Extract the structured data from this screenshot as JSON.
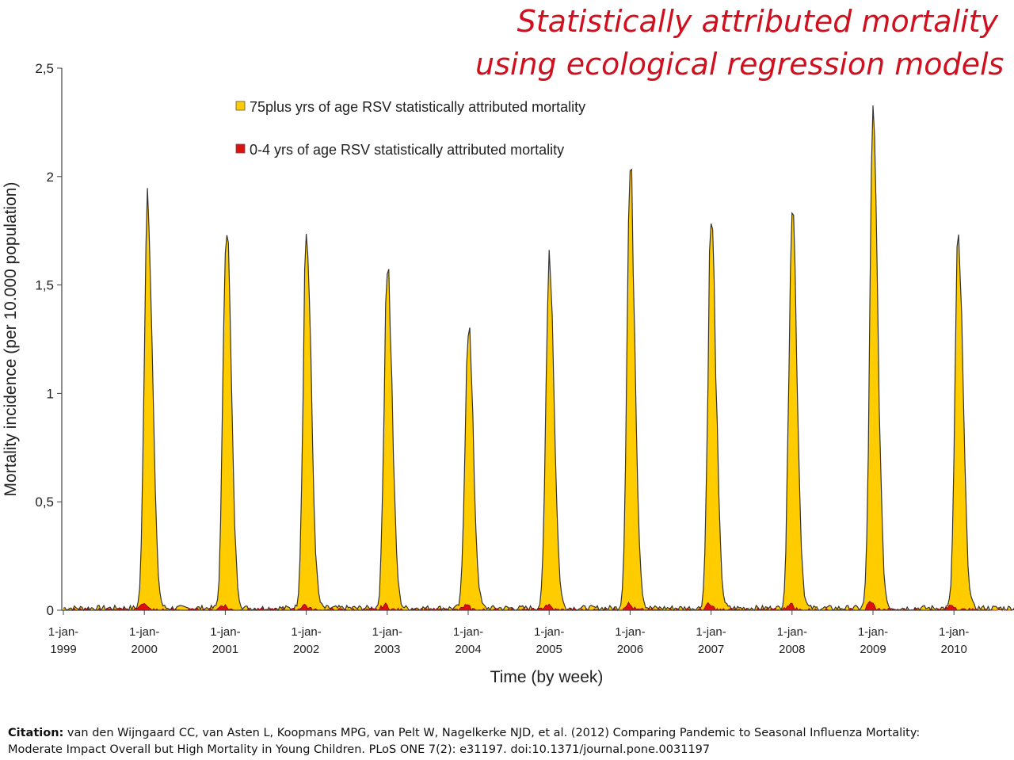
{
  "slide_title": {
    "line1": "Statistically attributed mortality",
    "line2": "using ecological regression models"
  },
  "citation": {
    "label": "Citation:",
    "line1": "van den Wijngaard CC, van Asten L, Koopmans MPG, van Pelt W, Nagelkerke NJD, et al. (2012) Comparing Pandemic to Seasonal Influenza Mortality:",
    "line2": "Moderate Impact Overall but High Mortality in Young Children. PLoS ONE 7(2): e31197. doi:10.1371/journal.pone.0031197"
  },
  "colors": {
    "series_75plus": "#ffcc00",
    "series_0_4": "#e01010",
    "outline": "#333333",
    "title": "#d0101e"
  },
  "chart_data": {
    "type": "area",
    "xlabel": "Time (by week)",
    "ylabel": "Mortality incidence (per 10.000 population)",
    "ylim": [
      0,
      2.5
    ],
    "y_ticks": [
      "0",
      "0,5",
      "1",
      "1,5",
      "2",
      "2,5"
    ],
    "x_ticks": [
      {
        "date": "1999-01-01",
        "line1": "1-jan-",
        "line2": "1999"
      },
      {
        "date": "2000-01-01",
        "line1": "1-jan-",
        "line2": "2000"
      },
      {
        "date": "2001-01-01",
        "line1": "1-jan-",
        "line2": "2001"
      },
      {
        "date": "2002-01-01",
        "line1": "1-jan-",
        "line2": "2002"
      },
      {
        "date": "2003-01-01",
        "line1": "1-jan-",
        "line2": "2003"
      },
      {
        "date": "2004-01-01",
        "line1": "1-jan-",
        "line2": "2004"
      },
      {
        "date": "2005-01-01",
        "line1": "1-jan-",
        "line2": "2005"
      },
      {
        "date": "2006-01-01",
        "line1": "1-jan-",
        "line2": "2006"
      },
      {
        "date": "2007-01-01",
        "line1": "1-jan-",
        "line2": "2007"
      },
      {
        "date": "2008-01-01",
        "line1": "1-jan-",
        "line2": "2008"
      },
      {
        "date": "2009-01-01",
        "line1": "1-jan-",
        "line2": "2009"
      },
      {
        "date": "2010-01-01",
        "line1": "1-jan-",
        "line2": "2010"
      }
    ],
    "legend_placement": "top-left",
    "grid": false,
    "series": [
      {
        "name": "75plus yrs of age RSV statistically attributed mortality",
        "color": "#ffcc00",
        "peaks": [
          {
            "date": "2000-01-15",
            "value": 1.95
          },
          {
            "date": "2001-01-05",
            "value": 1.82
          },
          {
            "date": "2002-01-01",
            "value": 1.74
          },
          {
            "date": "2003-01-01",
            "value": 1.61
          },
          {
            "date": "2004-01-01",
            "value": 1.32
          },
          {
            "date": "2005-01-01",
            "value": 1.66
          },
          {
            "date": "2006-01-01",
            "value": 2.01
          },
          {
            "date": "2007-01-01",
            "value": 1.79
          },
          {
            "date": "2008-01-01",
            "value": 1.89
          },
          {
            "date": "2009-01-01",
            "value": 2.22
          },
          {
            "date": "2010-01-20",
            "value": 1.68
          }
        ]
      },
      {
        "name": "0-4 yrs of age RSV statistically attributed mortality",
        "color": "#e01010",
        "peaks": [
          {
            "date": "1999-12-20",
            "value": 0.035
          },
          {
            "date": "2000-12-20",
            "value": 0.025
          },
          {
            "date": "2001-12-20",
            "value": 0.025
          },
          {
            "date": "2002-12-20",
            "value": 0.025
          },
          {
            "date": "2003-12-20",
            "value": 0.02
          },
          {
            "date": "2004-12-20",
            "value": 0.025
          },
          {
            "date": "2005-12-20",
            "value": 0.03
          },
          {
            "date": "2006-12-20",
            "value": 0.025
          },
          {
            "date": "2007-12-20",
            "value": 0.03
          },
          {
            "date": "2008-12-20",
            "value": 0.03
          },
          {
            "date": "2009-12-20",
            "value": 0.025
          }
        ]
      }
    ]
  }
}
